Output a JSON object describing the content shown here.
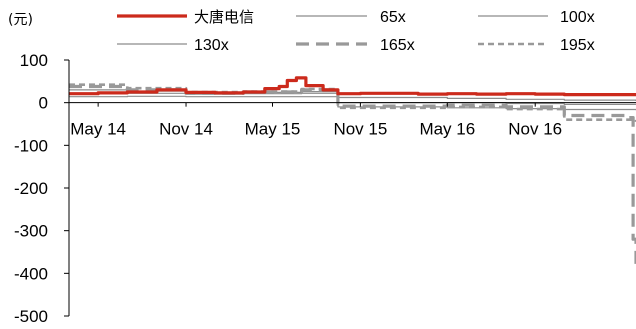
{
  "chart_data": {
    "type": "line",
    "unit_label": "(元)",
    "y_ticks": [
      100,
      0,
      -100,
      -200,
      -300,
      -400,
      -500
    ],
    "ylim": [
      -500,
      100
    ],
    "x_tick_labels": [
      "May 14",
      "Nov 14",
      "May 15",
      "Nov 15",
      "May 16",
      "Nov 16"
    ],
    "x_tick_dates": [
      "2014-05-01",
      "2014-11-01",
      "2015-05-01",
      "2015-11-01",
      "2016-05-01",
      "2016-11-01"
    ],
    "x_range": [
      "2014-03-01",
      "2017-05-31"
    ],
    "legend_position": "top",
    "series": [
      {
        "name": "大唐电信",
        "color": "#cc2a1c",
        "style": "solid-thick",
        "points": [
          [
            "2014-03-01",
            21
          ],
          [
            "2014-05-01",
            23
          ],
          [
            "2014-07-01",
            25
          ],
          [
            "2014-09-01",
            30
          ],
          [
            "2014-11-01",
            24
          ],
          [
            "2015-01-01",
            23
          ],
          [
            "2015-03-01",
            25
          ],
          [
            "2015-04-15",
            33
          ],
          [
            "2015-05-15",
            38
          ],
          [
            "2015-06-01",
            52
          ],
          [
            "2015-06-20",
            58
          ],
          [
            "2015-07-10",
            40
          ],
          [
            "2015-08-15",
            30
          ],
          [
            "2015-09-15",
            21
          ],
          [
            "2015-11-01",
            22
          ],
          [
            "2016-01-01",
            22
          ],
          [
            "2016-03-01",
            20
          ],
          [
            "2016-05-01",
            21
          ],
          [
            "2016-07-01",
            20
          ],
          [
            "2016-09-01",
            21
          ],
          [
            "2016-11-01",
            20
          ],
          [
            "2017-01-01",
            19
          ],
          [
            "2017-03-01",
            19
          ],
          [
            "2017-05-31",
            19
          ]
        ]
      },
      {
        "name": "65x",
        "color": "#8c8c8c",
        "style": "solid-thin",
        "points": [
          [
            "2014-03-01",
            14
          ],
          [
            "2014-07-01",
            15
          ],
          [
            "2014-11-01",
            14
          ],
          [
            "2015-03-01",
            14
          ],
          [
            "2015-07-01",
            14
          ],
          [
            "2015-09-15",
            0
          ],
          [
            "2016-01-01",
            0
          ],
          [
            "2016-05-01",
            0
          ],
          [
            "2016-09-01",
            -2
          ],
          [
            "2017-01-01",
            -4
          ],
          [
            "2017-05-31",
            -5
          ]
        ]
      },
      {
        "name": "100x",
        "color": "#8c8c8c",
        "style": "solid-thin",
        "points": [
          [
            "2014-03-01",
            22
          ],
          [
            "2014-07-01",
            22
          ],
          [
            "2014-11-01",
            20
          ],
          [
            "2015-03-01",
            21
          ],
          [
            "2015-07-01",
            22
          ],
          [
            "2015-09-15",
            12
          ],
          [
            "2016-01-01",
            12
          ],
          [
            "2016-05-01",
            10
          ],
          [
            "2016-09-01",
            8
          ],
          [
            "2017-01-01",
            6
          ],
          [
            "2017-05-31",
            4
          ]
        ]
      },
      {
        "name": "130x",
        "color": "#8c8c8c",
        "style": "solid-thin",
        "points": [
          [
            "2014-03-01",
            30
          ],
          [
            "2014-07-01",
            27
          ],
          [
            "2014-11-01",
            23
          ],
          [
            "2015-03-01",
            24
          ],
          [
            "2015-07-01",
            26
          ],
          [
            "2015-09-15",
            -10
          ],
          [
            "2016-01-01",
            -10
          ],
          [
            "2016-05-01",
            -12
          ],
          [
            "2016-09-01",
            -14
          ],
          [
            "2017-01-01",
            -16
          ],
          [
            "2017-05-31",
            -18
          ]
        ]
      },
      {
        "name": "165x",
        "color": "#999999",
        "style": "dashed-thick",
        "points": [
          [
            "2014-03-01",
            38
          ],
          [
            "2014-07-01",
            30
          ],
          [
            "2014-11-01",
            22
          ],
          [
            "2015-03-01",
            25
          ],
          [
            "2015-07-01",
            30
          ],
          [
            "2015-09-15",
            -8
          ],
          [
            "2016-01-01",
            -8
          ],
          [
            "2016-05-01",
            -6
          ],
          [
            "2016-09-01",
            -10
          ],
          [
            "2017-01-01",
            -30
          ],
          [
            "2017-05-15",
            -35
          ],
          [
            "2017-05-25",
            -320
          ],
          [
            "2017-05-31",
            -390
          ]
        ]
      },
      {
        "name": "195x",
        "color": "#999999",
        "style": "dashed-medium",
        "points": [
          [
            "2014-03-01",
            42
          ],
          [
            "2014-07-01",
            34
          ],
          [
            "2014-11-01",
            25
          ],
          [
            "2015-03-01",
            26
          ],
          [
            "2015-07-01",
            32
          ],
          [
            "2015-09-15",
            -12
          ],
          [
            "2016-01-01",
            -12
          ],
          [
            "2016-05-01",
            -10
          ],
          [
            "2016-09-01",
            -15
          ],
          [
            "2017-01-01",
            -40
          ],
          [
            "2017-05-31",
            -45
          ]
        ]
      }
    ]
  }
}
